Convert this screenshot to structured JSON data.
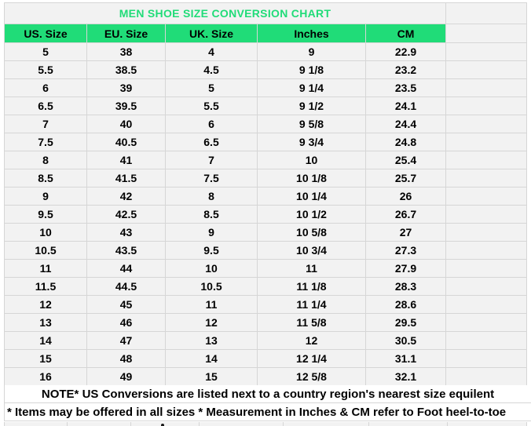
{
  "chart_data": {
    "type": "table",
    "title": "MEN SHOE SIZE CONVERSION CHART",
    "columns": [
      "US. Size",
      "EU. Size",
      "UK. Size",
      "Inches",
      "CM"
    ],
    "rows": [
      [
        "5",
        "38",
        "4",
        "9",
        "22.9"
      ],
      [
        "5.5",
        "38.5",
        "4.5",
        "9 1/8",
        "23.2"
      ],
      [
        "6",
        "39",
        "5",
        "9 1/4",
        "23.5"
      ],
      [
        "6.5",
        "39.5",
        "5.5",
        "9 1/2",
        "24.1"
      ],
      [
        "7",
        "40",
        "6",
        "9 5/8",
        "24.4"
      ],
      [
        "7.5",
        "40.5",
        "6.5",
        "9 3/4",
        "24.8"
      ],
      [
        "8",
        "41",
        "7",
        "10",
        "25.4"
      ],
      [
        "8.5",
        "41.5",
        "7.5",
        "10 1/8",
        "25.7"
      ],
      [
        "9",
        "42",
        "8",
        "10 1/4",
        "26"
      ],
      [
        "9.5",
        "42.5",
        "8.5",
        "10 1/2",
        "26.7"
      ],
      [
        "10",
        "43",
        "9",
        "10 5/8",
        "27"
      ],
      [
        "10.5",
        "43.5",
        "9.5",
        "10 3/4",
        "27.3"
      ],
      [
        "11",
        "44",
        "10",
        "11",
        "27.9"
      ],
      [
        "11.5",
        "44.5",
        "10.5",
        "11 1/8",
        "28.3"
      ],
      [
        "12",
        "45",
        "11",
        "11 1/4",
        "28.6"
      ],
      [
        "13",
        "46",
        "12",
        "11 5/8",
        "29.5"
      ],
      [
        "14",
        "47",
        "13",
        "12",
        "30.5"
      ],
      [
        "15",
        "48",
        "14",
        "12 1/4",
        "31.1"
      ],
      [
        "16",
        "49",
        "15",
        "12 5/8",
        "32.1"
      ]
    ],
    "notes": [
      "NOTE* US Conversions are listed next to a country region's nearest size equilent",
      "* Items may be offered in all sizes * Measurement in Inches & CM refer to Foot heel-to-toe"
    ],
    "layout_hints": {
      "grid": "on",
      "header_fill": "green",
      "title_position": "top-merged-cell"
    }
  },
  "colors": {
    "accent_green": "#20dc78",
    "cell_bg": "#f2f2f2",
    "note_bg": "#ffffff",
    "gridline": "#d6d6d6",
    "text": "#000000"
  }
}
